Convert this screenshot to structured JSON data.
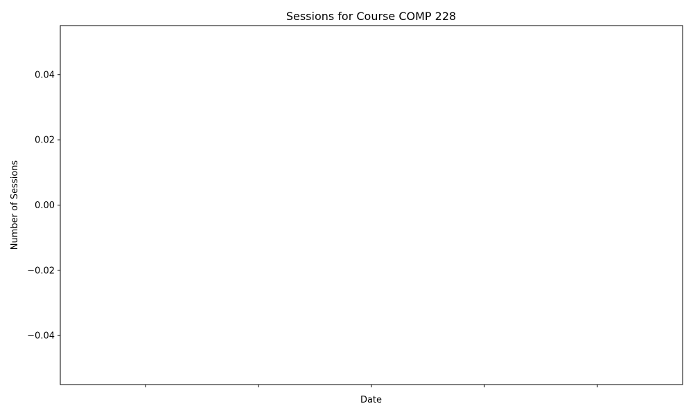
{
  "chart_data": {
    "type": "line",
    "title": "Sessions for Course COMP 228",
    "xlabel": "Date",
    "ylabel": "Number of Sessions",
    "x": [],
    "series": [
      {
        "values": []
      }
    ],
    "ylim": [
      -0.055,
      0.055
    ],
    "yticks": [
      0.04,
      0.02,
      0.0,
      -0.02,
      -0.04
    ],
    "ytick_labels": [
      "0.04",
      "0.02",
      "0.00",
      "−0.02",
      "−0.04"
    ],
    "xticks_count": 5,
    "grid": false,
    "legend": "none"
  }
}
